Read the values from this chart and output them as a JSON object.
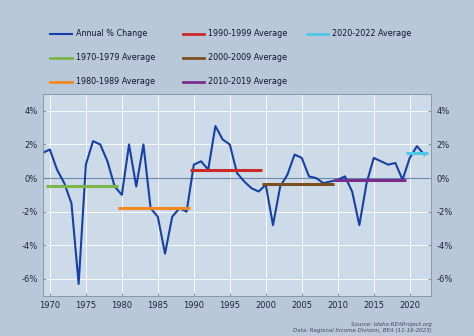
{
  "years": [
    1969,
    1970,
    1971,
    1972,
    1973,
    1974,
    1975,
    1976,
    1977,
    1978,
    1979,
    1980,
    1981,
    1982,
    1983,
    1984,
    1985,
    1986,
    1987,
    1988,
    1989,
    1990,
    1991,
    1992,
    1993,
    1994,
    1995,
    1996,
    1997,
    1998,
    1999,
    2000,
    2001,
    2002,
    2003,
    2004,
    2005,
    2006,
    2007,
    2008,
    2009,
    2010,
    2011,
    2012,
    2013,
    2014,
    2015,
    2016,
    2017,
    2018,
    2019,
    2020,
    2021,
    2022
  ],
  "values": [
    1.5,
    1.7,
    0.5,
    -0.3,
    -1.5,
    -6.3,
    0.8,
    2.2,
    2.0,
    1.0,
    -0.5,
    -1.0,
    2.0,
    -0.5,
    2.0,
    -1.8,
    -2.3,
    -4.5,
    -2.3,
    -1.8,
    -2.0,
    0.8,
    1.0,
    0.5,
    3.1,
    2.3,
    2.0,
    0.3,
    -0.2,
    -0.6,
    -0.8,
    -0.4,
    -2.8,
    -0.5,
    0.2,
    1.4,
    1.2,
    0.1,
    0.0,
    -0.3,
    -0.2,
    -0.1,
    0.1,
    -0.8,
    -2.8,
    -0.3,
    1.2,
    1.0,
    0.8,
    0.9,
    -0.1,
    1.2,
    1.9,
    1.4
  ],
  "avg_1970_1979": {
    "value": -0.5,
    "xstart": 1969.5,
    "xend": 1979.5,
    "color": "#7ab648",
    "label": "1970-1979 Average"
  },
  "avg_1980_1989": {
    "value": -1.8,
    "xstart": 1979.5,
    "xend": 1989.5,
    "color": "#f4891f",
    "label": "1980-1989 Average"
  },
  "avg_1990_1999": {
    "value": 0.5,
    "xstart": 1989.5,
    "xend": 1999.5,
    "color": "#cc2929",
    "label": "1990-1999 Average"
  },
  "avg_2000_2009": {
    "value": -0.35,
    "xstart": 1999.5,
    "xend": 2009.5,
    "color": "#7b4f1e",
    "label": "2000-2009 Average"
  },
  "avg_2010_2019": {
    "value": -0.1,
    "xstart": 2009.5,
    "xend": 2019.5,
    "color": "#7b2d8b",
    "label": "2010-2019 Average"
  },
  "avg_2020_2022": {
    "value": 1.5,
    "xstart": 2019.5,
    "xend": 2022.5,
    "color": "#4dc8e8",
    "label": "2020-2022 Average"
  },
  "line_color": "#1740a6",
  "bg_color": "#b8c8d8",
  "plot_bg_color": "#cddae8",
  "legend_bg_color": "#dce6f0",
  "ylim": [
    -7,
    5
  ],
  "yticks": [
    -6,
    -4,
    -2,
    0,
    2,
    4
  ],
  "ytick_labels": [
    "-6%",
    "-4%",
    "-2%",
    "0%",
    "2%",
    "4%"
  ],
  "xlim": [
    1969,
    2023
  ],
  "xticks": [
    1970,
    1975,
    1980,
    1985,
    1990,
    1995,
    2000,
    2005,
    2010,
    2015,
    2020
  ],
  "source_text": "Source: Idaho.REAProject.org\nData: Regional Income Division, BEA (11-16-2023)"
}
